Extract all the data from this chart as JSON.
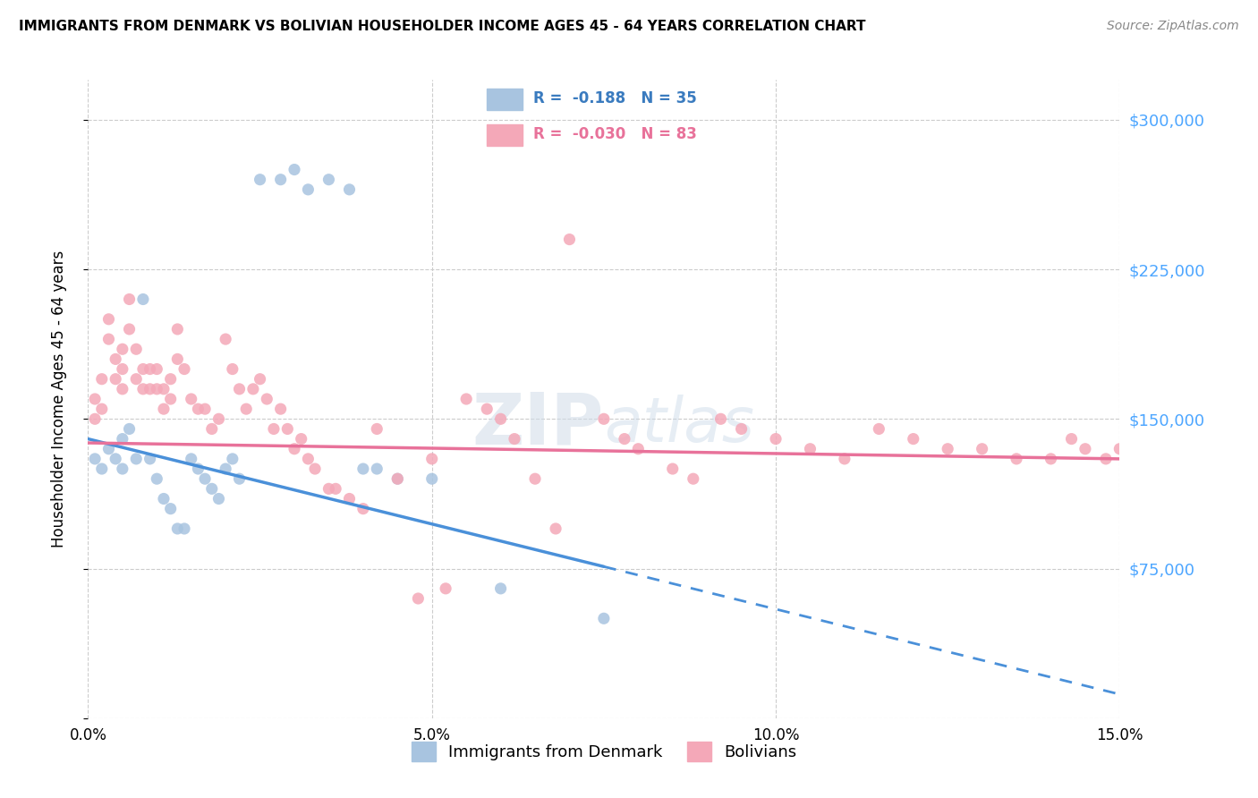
{
  "title": "IMMIGRANTS FROM DENMARK VS BOLIVIAN HOUSEHOLDER INCOME AGES 45 - 64 YEARS CORRELATION CHART",
  "source": "Source: ZipAtlas.com",
  "ylabel": "Householder Income Ages 45 - 64 years",
  "xlim": [
    0.0,
    0.15
  ],
  "ylim": [
    0,
    320000
  ],
  "yticks": [
    0,
    75000,
    150000,
    225000,
    300000
  ],
  "ytick_labels": [
    "",
    "$75,000",
    "$150,000",
    "$225,000",
    "$300,000"
  ],
  "xticks": [
    0.0,
    0.05,
    0.1,
    0.15
  ],
  "xtick_labels": [
    "0.0%",
    "5.0%",
    "10.0%",
    "15.0%"
  ],
  "denmark_color": "#a8c4e0",
  "bolivia_color": "#f4a8b8",
  "line_dk_color": "#4a90d9",
  "line_bv_color": "#e8729a",
  "right_tick_color": "#4da6ff",
  "legend_label_dk_color": "#3a7bbf",
  "legend_label_bv_color": "#e8729a",
  "denmark_R": -0.188,
  "denmark_N": 35,
  "bolivia_R": -0.03,
  "bolivia_N": 83,
  "dk_x": [
    0.001,
    0.002,
    0.003,
    0.004,
    0.005,
    0.005,
    0.006,
    0.007,
    0.008,
    0.009,
    0.01,
    0.011,
    0.012,
    0.013,
    0.014,
    0.015,
    0.016,
    0.017,
    0.018,
    0.019,
    0.02,
    0.021,
    0.022,
    0.025,
    0.028,
    0.03,
    0.032,
    0.035,
    0.038,
    0.04,
    0.042,
    0.045,
    0.05,
    0.06,
    0.075
  ],
  "dk_y": [
    130000,
    125000,
    135000,
    130000,
    140000,
    125000,
    145000,
    130000,
    210000,
    130000,
    120000,
    110000,
    105000,
    95000,
    95000,
    130000,
    125000,
    120000,
    115000,
    110000,
    125000,
    130000,
    120000,
    270000,
    270000,
    275000,
    265000,
    270000,
    265000,
    125000,
    125000,
    120000,
    120000,
    65000,
    50000
  ],
  "bv_x": [
    0.001,
    0.001,
    0.002,
    0.002,
    0.003,
    0.003,
    0.004,
    0.004,
    0.005,
    0.005,
    0.005,
    0.006,
    0.006,
    0.007,
    0.007,
    0.008,
    0.008,
    0.009,
    0.009,
    0.01,
    0.01,
    0.011,
    0.011,
    0.012,
    0.012,
    0.013,
    0.013,
    0.014,
    0.015,
    0.016,
    0.017,
    0.018,
    0.019,
    0.02,
    0.021,
    0.022,
    0.023,
    0.024,
    0.025,
    0.026,
    0.027,
    0.028,
    0.029,
    0.03,
    0.031,
    0.032,
    0.033,
    0.035,
    0.036,
    0.038,
    0.04,
    0.042,
    0.045,
    0.048,
    0.05,
    0.052,
    0.055,
    0.058,
    0.06,
    0.062,
    0.065,
    0.068,
    0.07,
    0.075,
    0.078,
    0.08,
    0.085,
    0.088,
    0.092,
    0.095,
    0.1,
    0.105,
    0.11,
    0.115,
    0.12,
    0.125,
    0.13,
    0.135,
    0.14,
    0.143,
    0.145,
    0.148,
    0.15
  ],
  "bv_y": [
    160000,
    150000,
    170000,
    155000,
    200000,
    190000,
    180000,
    170000,
    185000,
    175000,
    165000,
    210000,
    195000,
    185000,
    170000,
    175000,
    165000,
    175000,
    165000,
    175000,
    165000,
    165000,
    155000,
    170000,
    160000,
    195000,
    180000,
    175000,
    160000,
    155000,
    155000,
    145000,
    150000,
    190000,
    175000,
    165000,
    155000,
    165000,
    170000,
    160000,
    145000,
    155000,
    145000,
    135000,
    140000,
    130000,
    125000,
    115000,
    115000,
    110000,
    105000,
    145000,
    120000,
    60000,
    130000,
    65000,
    160000,
    155000,
    150000,
    140000,
    120000,
    95000,
    240000,
    150000,
    140000,
    135000,
    125000,
    120000,
    150000,
    145000,
    140000,
    135000,
    130000,
    145000,
    140000,
    135000,
    135000,
    130000,
    130000,
    140000,
    135000,
    130000,
    135000
  ]
}
